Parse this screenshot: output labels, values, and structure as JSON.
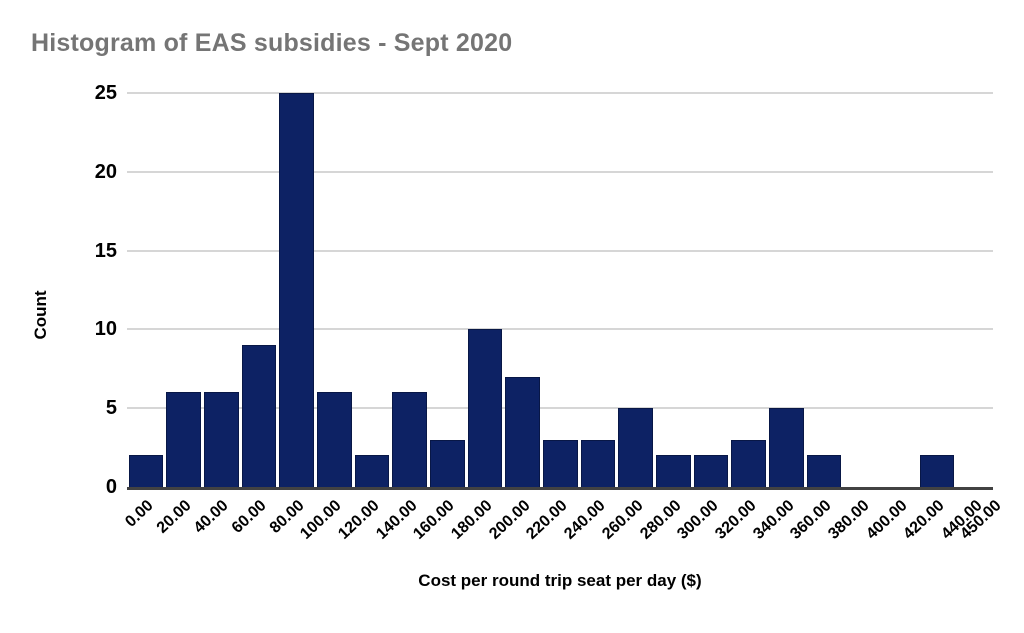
{
  "chart_data": {
    "type": "bar",
    "subtype": "histogram",
    "title": "Histogram of EAS subsidies - Sept 2020",
    "xlabel": "Cost per round trip seat per day ($)",
    "ylabel": "Count",
    "xlim": [
      0,
      450
    ],
    "ylim": [
      0,
      25
    ],
    "y_ticks": [
      0,
      5,
      10,
      15,
      20,
      25
    ],
    "x_tick_values": [
      0,
      20,
      40,
      60,
      80,
      100,
      120,
      140,
      160,
      180,
      200,
      220,
      240,
      260,
      280,
      300,
      320,
      340,
      360,
      380,
      400,
      420,
      440,
      450
    ],
    "x_tick_labels": [
      "0.00",
      "20.00",
      "40.00",
      "60.00",
      "80.00",
      "100.00",
      "120.00",
      "140.00",
      "160.00",
      "180.00",
      "200.00",
      "220.00",
      "240.00",
      "260.00",
      "280.00",
      "300.00",
      "320.00",
      "340.00",
      "360.00",
      "380.00",
      "400.00",
      "420.00",
      "440.00",
      "450.00"
    ],
    "bin_edges": [
      0,
      20,
      40,
      60,
      80,
      100,
      120,
      140,
      160,
      180,
      200,
      220,
      240,
      260,
      280,
      300,
      320,
      340,
      360,
      380,
      400,
      420,
      440,
      450
    ],
    "counts": [
      2,
      6,
      6,
      9,
      25,
      6,
      2,
      6,
      3,
      10,
      7,
      3,
      3,
      5,
      2,
      2,
      3,
      5,
      2,
      0,
      0,
      2,
      0
    ],
    "grid": "horizontal",
    "legend_position": "none",
    "colors": {
      "bar": "#0d2264",
      "grid": "#d6d6d6",
      "axis": "#424242",
      "title": "#757575",
      "tick_label": "#000000",
      "background": "#ffffff"
    }
  }
}
